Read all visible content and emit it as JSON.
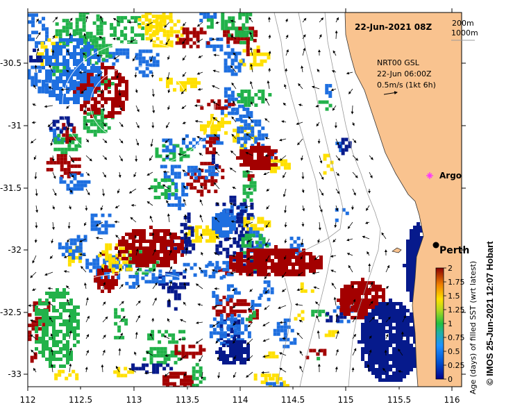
{
  "map": {
    "timestamp": "22-Jun-2021 08Z",
    "isobaths": [
      "200m",
      "1000m"
    ],
    "current_info": {
      "source": "NRT00 GSL",
      "time": "22-Jun 06:00Z",
      "scale": "0.5m/s (1kt 6h)"
    },
    "labels": {
      "argo": "Argo",
      "city": "Perth"
    },
    "x_ticks": [
      "112",
      "112.5",
      "113",
      "113.5",
      "114",
      "114.5",
      "115",
      "115.5",
      "116"
    ],
    "y_ticks": [
      "-30.5",
      "-31",
      "-31.5",
      "-32",
      "-32.5",
      "-33"
    ],
    "colorbar": {
      "label": "Age (days) of filled SST (wrt latest)",
      "ticks": [
        "0",
        "0.25",
        "0.5",
        "0.75",
        "1",
        "1.25",
        "1.5",
        "1.75",
        "2"
      ]
    },
    "credit": "© IMOS 25-Jun-2021 12:07 Hobart",
    "colors": {
      "land": "#F9C38F",
      "deep_red": "#A30000",
      "blue": "#1E6FE0",
      "navy": "#061A8C",
      "yellow": "#FFE000",
      "green": "#22B24A"
    }
  }
}
